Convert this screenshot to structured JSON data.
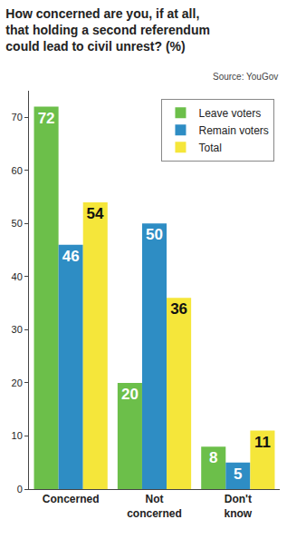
{
  "chart_data": {
    "type": "bar",
    "title": "How concerned are you, if at all, that holding a second referendum could lead to civil unrest? (%)",
    "source": "Source: YouGov",
    "categories": [
      "Concerned",
      "Not concerned",
      "Don't know"
    ],
    "series": [
      {
        "name": "Leave voters",
        "color": "#6cbf4a",
        "values": [
          72,
          20,
          8
        ]
      },
      {
        "name": "Remain voters",
        "color": "#2e8dc4",
        "values": [
          46,
          50,
          5
        ]
      },
      {
        "name": "Total",
        "color": "#f5e63a",
        "values": [
          54,
          36,
          11
        ]
      }
    ],
    "ylim": [
      0,
      75
    ],
    "yticks": [
      0,
      10,
      20,
      30,
      40,
      50,
      60,
      70
    ],
    "grid": false,
    "legend": "upper right",
    "data_labels": true
  }
}
